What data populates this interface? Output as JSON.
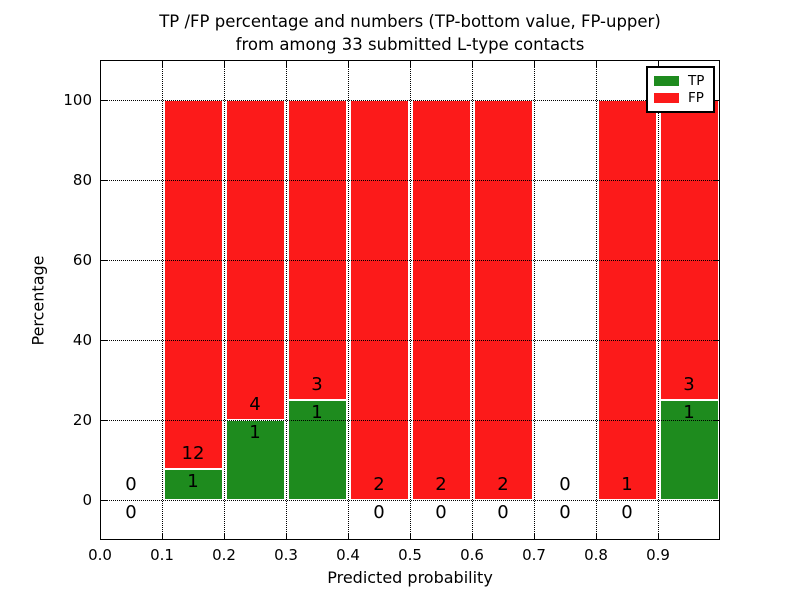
{
  "title": {
    "line1": "TP /FP percentage and numbers (TP-bottom value, FP-upper)",
    "line2": "from among 33 submitted L-type contacts"
  },
  "chart_data": {
    "type": "bar",
    "stacked": true,
    "title": "TP /FP percentage and numbers (TP-bottom value, FP-upper) from among 33 submitted L-type contacts",
    "xlabel": "Predicted probability",
    "ylabel": "Percentage",
    "xlim": [
      0.0,
      1.0
    ],
    "ylim": [
      -10,
      110
    ],
    "xticks": [
      "0.0",
      "0.1",
      "0.2",
      "0.3",
      "0.4",
      "0.5",
      "0.6",
      "0.7",
      "0.8",
      "0.9"
    ],
    "yticks": [
      "0",
      "20",
      "40",
      "60",
      "80",
      "100"
    ],
    "grid": true,
    "grid_style": "dotted",
    "total_contacts": 33,
    "bin_width": 0.1,
    "bins": [
      {
        "x0": 0.0,
        "x1": 0.1,
        "tp_count": 0,
        "fp_count": 0,
        "tp_pct": 0,
        "fp_pct": 0
      },
      {
        "x0": 0.1,
        "x1": 0.2,
        "tp_count": 1,
        "fp_count": 12,
        "tp_pct": 7.69,
        "fp_pct": 92.31
      },
      {
        "x0": 0.2,
        "x1": 0.3,
        "tp_count": 1,
        "fp_count": 4,
        "tp_pct": 20,
        "fp_pct": 80
      },
      {
        "x0": 0.3,
        "x1": 0.4,
        "tp_count": 1,
        "fp_count": 3,
        "tp_pct": 25,
        "fp_pct": 75
      },
      {
        "x0": 0.4,
        "x1": 0.5,
        "tp_count": 0,
        "fp_count": 2,
        "tp_pct": 0,
        "fp_pct": 100
      },
      {
        "x0": 0.5,
        "x1": 0.6,
        "tp_count": 0,
        "fp_count": 2,
        "tp_pct": 0,
        "fp_pct": 100
      },
      {
        "x0": 0.6,
        "x1": 0.7,
        "tp_count": 0,
        "fp_count": 2,
        "tp_pct": 0,
        "fp_pct": 100
      },
      {
        "x0": 0.7,
        "x1": 0.8,
        "tp_count": 0,
        "fp_count": 0,
        "tp_pct": 0,
        "fp_pct": 0
      },
      {
        "x0": 0.8,
        "x1": 0.9,
        "tp_count": 0,
        "fp_count": 1,
        "tp_pct": 0,
        "fp_pct": 100
      },
      {
        "x0": 0.9,
        "x1": 1.0,
        "tp_count": 1,
        "fp_count": 3,
        "tp_pct": 25,
        "fp_pct": 75
      }
    ],
    "legend": {
      "position": "upper right",
      "entries": [
        {
          "label": "TP",
          "color": "#1e8b1e"
        },
        {
          "label": "FP",
          "color": "#fc1a1a"
        }
      ]
    },
    "colors": {
      "tp": "#1e8b1e",
      "fp": "#fc1a1a",
      "grid": "#000000",
      "text": "#000000",
      "background": "#ffffff"
    }
  }
}
